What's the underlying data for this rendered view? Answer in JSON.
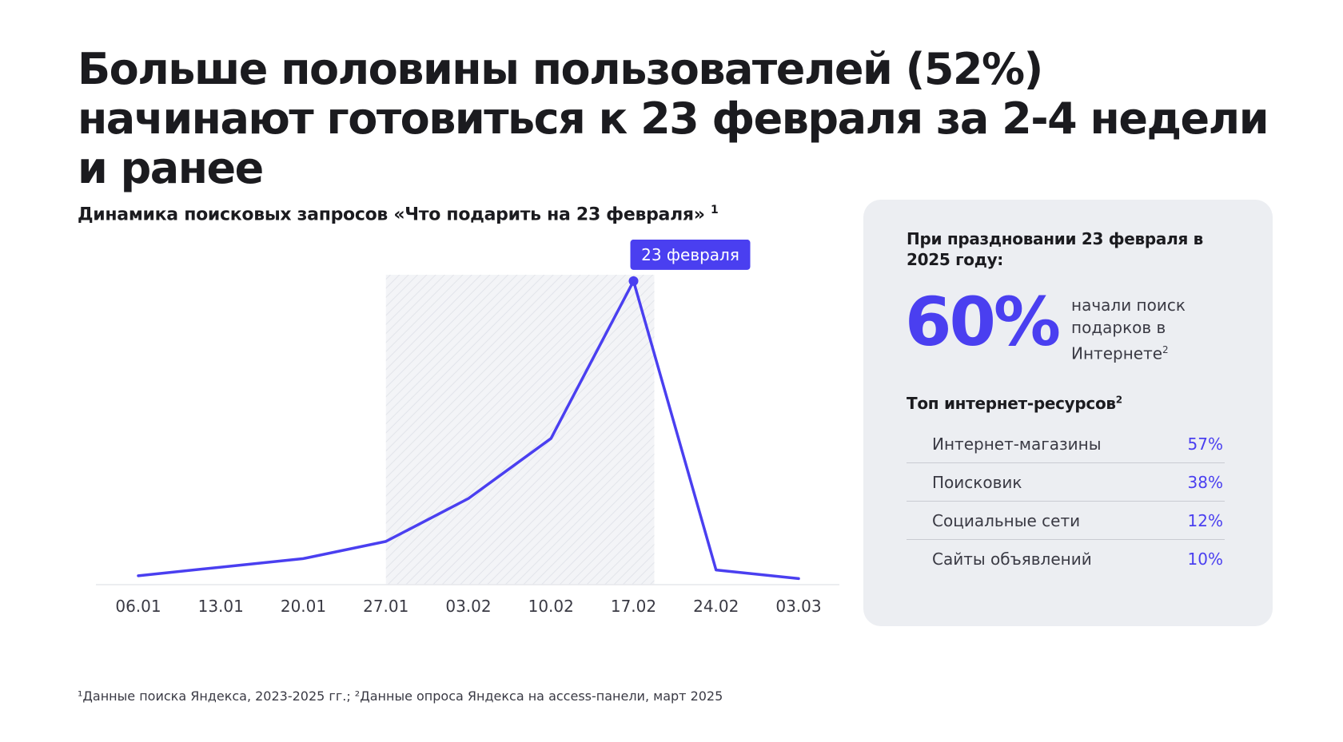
{
  "page": {
    "title": "Больше половины пользователей (52%) начинают готовиться к 23 февраля за 2-4 недели и ранее",
    "footnote": "¹Данные поиска Яндекса, 2023-2025 гг.; ²Данные опроса Яндекса на access-панели, март 2025"
  },
  "chart": {
    "title": "Динамика поисковых запросов «Что подарить на 23 февраля»",
    "title_footnote": "1"
  },
  "chart_data": {
    "type": "line",
    "title": "Динамика поисковых запросов «Что подарить на 23 февраля»",
    "categories": [
      "06.01",
      "13.01",
      "20.01",
      "27.01",
      "03.02",
      "10.02",
      "17.02",
      "24.02",
      "03.03"
    ],
    "series": [
      {
        "values": [
          2,
          5,
          8,
          14,
          29,
          50,
          105,
          4,
          1
        ]
      }
    ],
    "xlabel": "",
    "ylabel": "",
    "ylim": [
      0,
      110
    ],
    "highlight_range": [
      "27.01",
      "17.02"
    ],
    "annotation": {
      "at": "17.02",
      "label": "23 февраля"
    },
    "y_axis_visible": false,
    "grid": false,
    "color": "#4a3ff0"
  },
  "card": {
    "heading": "При праздновании 23 февраля в 2025 году:",
    "big_value": "60%",
    "big_note": "начали поиск подарков в Интернете",
    "big_note_footnote": "2",
    "top_heading": "Топ интернет-ресурсов",
    "top_heading_footnote": "2",
    "resources": [
      {
        "name": "Интернет-магазины",
        "value": "57%"
      },
      {
        "name": "Поисковик",
        "value": "38%"
      },
      {
        "name": "Социальные сети",
        "value": "12%"
      },
      {
        "name": "Сайты объявлений",
        "value": "10%"
      }
    ]
  },
  "colors": {
    "accent": "#4a3ff0",
    "card_bg": "#eceef2",
    "text": "#1b1b1f"
  }
}
